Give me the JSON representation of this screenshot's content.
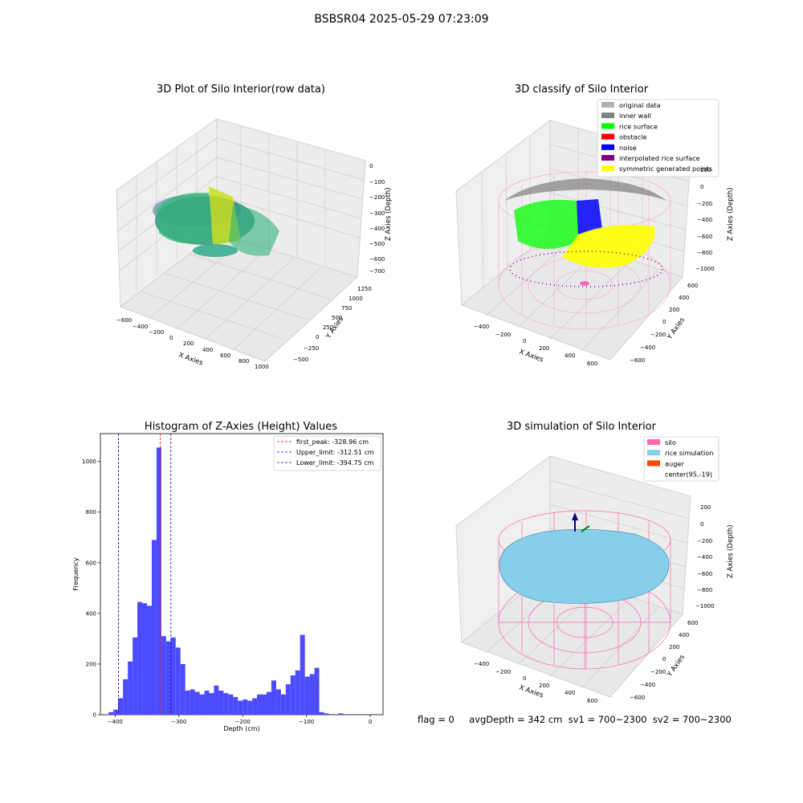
{
  "figure": {
    "suptitle": "BSBSR04 2025-05-29 07:23:09",
    "status_line": "flag = 0     avgDepth = 342 cm  sv1 = 700~2300  sv2 = 700~2300"
  },
  "colors": {
    "histogram_bar": "#4b4bff",
    "first_peak_line": "#ff0000",
    "limit_lines": "#0000cc",
    "silo_pink": "#ff69b4",
    "rice_sim": "#87ceeb",
    "auger": "#ff4500"
  },
  "chart_data": [
    {
      "type": "scatter",
      "title": "3D Plot of Silo Interior(row data)",
      "xlabel": "X Axies",
      "ylabel": "Y Axies",
      "zlabel": "Z Axies (Depth)",
      "x_ticks": [
        "−600",
        "−400",
        "−200",
        "0",
        "200",
        "400",
        "600",
        "800",
        "1000"
      ],
      "y_ticks": [
        "−500",
        "−250",
        "0",
        "250",
        "500",
        "750",
        "1000",
        "1250"
      ],
      "z_ticks": [
        "0",
        "−100",
        "−200",
        "−300",
        "−400",
        "−500",
        "−600",
        "−700"
      ],
      "xlim": [
        -600,
        1000
      ],
      "ylim": [
        -500,
        1250
      ],
      "zlim": [
        -700,
        0
      ],
      "grid": true
    },
    {
      "type": "scatter",
      "title": "3D classify of Silo Interior",
      "xlabel": "X Axies",
      "ylabel": "Y Axies",
      "zlabel": "Z Axies (Depth)",
      "x_ticks": [
        "−400",
        "−200",
        "0",
        "200",
        "400",
        "600"
      ],
      "y_ticks": [
        "−600",
        "−400",
        "−200",
        "0",
        "200",
        "400",
        "600"
      ],
      "z_ticks": [
        "−1000",
        "−800",
        "−600",
        "−400",
        "−200",
        "0",
        "200"
      ],
      "legend_position": "top-right",
      "legend": [
        {
          "label": "original data",
          "color": "#b0b0b0"
        },
        {
          "label": "inner wall",
          "color": "#808080"
        },
        {
          "label": "rice surface",
          "color": "#00ff00"
        },
        {
          "label": "obstacle",
          "color": "#ff0000"
        },
        {
          "label": "noise",
          "color": "#0000ff"
        },
        {
          "label": "interpolated rice surface",
          "color": "#800080"
        },
        {
          "label": "symmetric generated points",
          "color": "#ffff00"
        }
      ],
      "grid": true
    },
    {
      "type": "bar",
      "title": "Histogram of Z-Axies (Height) Values",
      "xlabel": "Depth (cm)",
      "ylabel": "Frequency",
      "xlim": [
        -423,
        20
      ],
      "ylim": [
        0,
        1110
      ],
      "x_ticks": [
        -400,
        -300,
        -200,
        -100,
        0
      ],
      "x_tick_labels": [
        "−400",
        "−300",
        "−200",
        "−100",
        "0"
      ],
      "y_ticks": [
        0,
        200,
        400,
        600,
        800,
        1000
      ],
      "y_tick_labels": [
        "0",
        "200",
        "400",
        "600",
        "800",
        "1000"
      ],
      "bin_start": -410,
      "bin_width": 7.5,
      "values": [
        10,
        20,
        65,
        140,
        210,
        305,
        445,
        440,
        430,
        690,
        1055,
        310,
        290,
        305,
        265,
        200,
        95,
        100,
        90,
        80,
        95,
        85,
        115,
        95,
        85,
        80,
        70,
        55,
        60,
        55,
        65,
        80,
        80,
        90,
        135,
        100,
        80,
        120,
        155,
        175,
        315,
        150,
        160,
        185,
        10,
        5,
        0,
        0,
        5,
        0
      ],
      "legend_position": "top-right",
      "lines": [
        {
          "label": "first_peak: -328.96 cm",
          "x": -328.96,
          "color": "#ff0000"
        },
        {
          "label": "Upper_limit: -312.51 cm",
          "x": -312.51,
          "color": "#0000cc"
        },
        {
          "label": "Lower_limit: -394.75 cm",
          "x": -394.75,
          "color": "#0000cc"
        }
      ],
      "grid": false
    },
    {
      "type": "scatter",
      "title": "3D simulation of Silo Interior",
      "xlabel": "X Axies",
      "ylabel": "Y Axies",
      "zlabel": "Z Axies (Depth)",
      "x_ticks": [
        "−400",
        "−200",
        "0",
        "200",
        "400",
        "600"
      ],
      "y_ticks": [
        "−600",
        "−400",
        "−200",
        "0",
        "200",
        "400",
        "600"
      ],
      "z_ticks": [
        "−1000",
        "−800",
        "−600",
        "−400",
        "−200",
        "0",
        "200"
      ],
      "legend_position": "top-right",
      "legend": [
        {
          "label": "silo",
          "color": "#ff69b4"
        },
        {
          "label": "rice simulation",
          "color": "#87ceeb"
        },
        {
          "label": "auger",
          "color": "#ff4500"
        },
        {
          "label": "center(95,-19)",
          "color": ""
        }
      ],
      "grid": true
    }
  ]
}
